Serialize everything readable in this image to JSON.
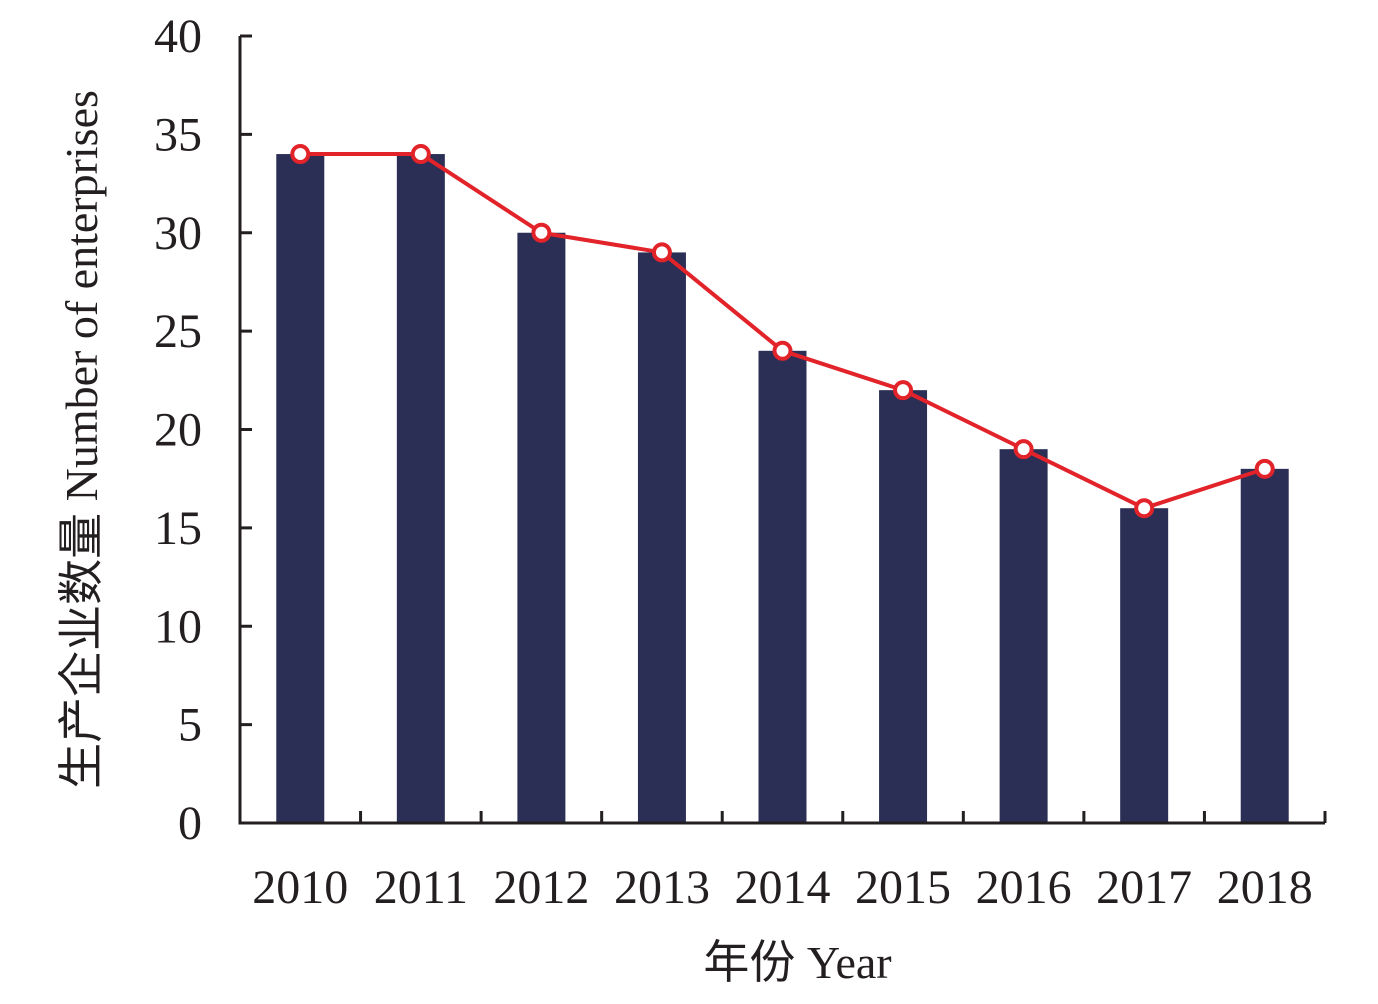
{
  "chart_data": {
    "type": "bar",
    "categories": [
      "2010",
      "2011",
      "2012",
      "2013",
      "2014",
      "2015",
      "2016",
      "2017",
      "2018"
    ],
    "values": [
      34,
      34,
      30,
      29,
      24,
      22,
      19,
      16,
      18
    ],
    "line_values": [
      34,
      34,
      30,
      29,
      24,
      22,
      19,
      16,
      18
    ],
    "xlabel": "年份 Year",
    "ylabel": "生产企业数量 Number of enterprises",
    "ylim": [
      0,
      40
    ],
    "yticks": [
      "0",
      "5",
      "10",
      "15",
      "20",
      "25",
      "30",
      "35",
      "40"
    ],
    "grid": false,
    "legend": "none",
    "colors": {
      "bar": "#2c2f55",
      "line": "#e2232a",
      "marker_fill": "#ffffff",
      "axis": "#231f20"
    }
  }
}
